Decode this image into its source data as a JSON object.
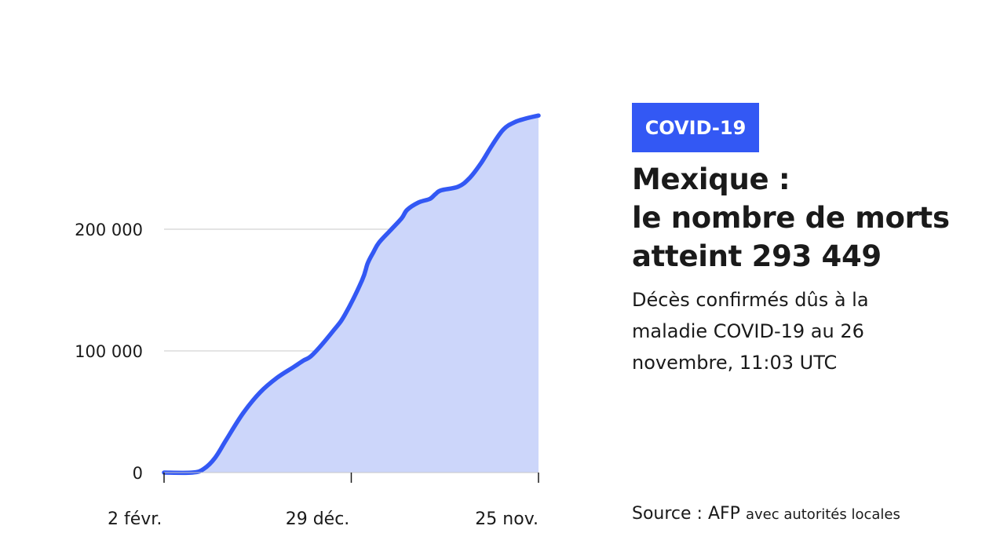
{
  "badge": "COVID-19",
  "title": {
    "line1": "Mexique :",
    "line2": "le nombre de morts",
    "line3": "atteint 293 449"
  },
  "subtitle": "Décès confirmés dûs à la maladie COVID-19 au 26 novembre, 11:03 UTC",
  "source": {
    "label": "Source : AFP",
    "detail": "avec autorités locales"
  },
  "colors": {
    "line": "#3358f4",
    "fill": "#ccd6fa",
    "badge": "#3358f4",
    "grid": "#c8c8c8"
  },
  "chart_data": {
    "type": "area",
    "title": "",
    "xlabel": "",
    "ylabel": "",
    "ylim": [
      0,
      300000
    ],
    "yticks": [
      {
        "value": 0,
        "label": "0"
      },
      {
        "value": 100000,
        "label": "100 000"
      },
      {
        "value": 200000,
        "label": "200 000"
      }
    ],
    "xticks": [
      {
        "day": 0,
        "label": "2 févr."
      },
      {
        "day": 331,
        "label": "29 déc."
      },
      {
        "day": 662,
        "label": "25 nov."
      }
    ],
    "grid": true,
    "series": [
      {
        "days": [
          0,
          50,
          70,
          90,
          110,
          140,
          170,
          200,
          230,
          246,
          263,
          300,
          320,
          350,
          360,
          370,
          380,
          400,
          420,
          430,
          450,
          470,
          480,
          490,
          520,
          540,
          560,
          580,
          600,
          620,
          640,
          662
        ],
        "values": [
          0,
          0,
          3000,
          12000,
          27000,
          49000,
          66000,
          78000,
          87000,
          92000,
          97000,
          117000,
          130000,
          158000,
          172000,
          181000,
          189000,
          199000,
          209000,
          216000,
          222000,
          225000,
          229000,
          232000,
          235000,
          242000,
          254000,
          269000,
          282000,
          288000,
          291000,
          293449
        ]
      }
    ]
  }
}
